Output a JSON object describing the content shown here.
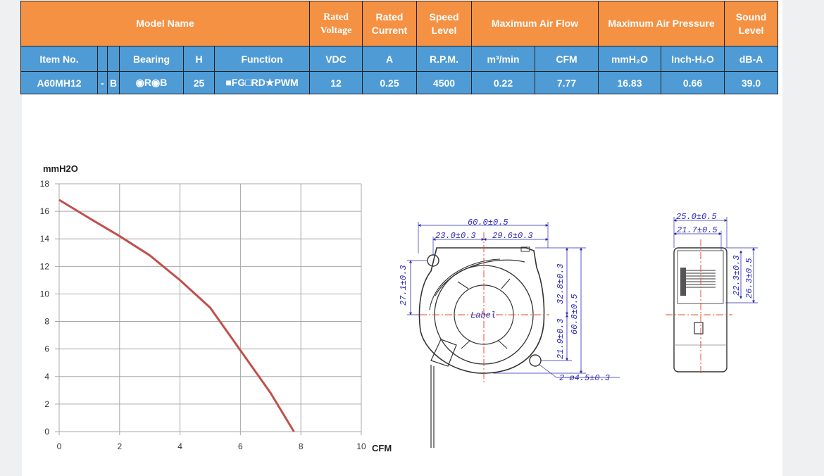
{
  "table": {
    "header1": {
      "model_name": "Model Name",
      "rated_voltage": "Rated Voltage",
      "rated_current": "Rated Current",
      "speed_level": "Speed Level",
      "max_air_flow": "Maximum Air Flow",
      "max_air_pressure": "Maximum Air Pressure",
      "sound_level": "Sound Level"
    },
    "header2": {
      "item_no": "Item No.",
      "bearing": "Bearing",
      "h": "H",
      "function": "Function",
      "vdc": "VDC",
      "a": "A",
      "rpm": "R.P.M.",
      "m3min": "m³/min",
      "cfm": "CFM",
      "mmh2o": "mmH₂O",
      "inchh2o": "Inch-H₂O",
      "dba": "dB-A"
    },
    "row": {
      "item_no": "A60MH12",
      "dash": "-",
      "b": "B",
      "bearing": "◉R◉B",
      "h": "25",
      "function": "■FG□RD★PWM",
      "vdc": "12",
      "a": "0.25",
      "rpm": "4500",
      "m3min": "0.22",
      "cfm": "7.77",
      "mmh2o": "16.83",
      "inchh2o": "0.66",
      "dba": "39.0"
    }
  },
  "chart_data": {
    "type": "line",
    "title": "",
    "xlabel": "CFM",
    "ylabel": "mmH2O",
    "xlim": [
      0,
      10
    ],
    "ylim": [
      0,
      18
    ],
    "x_ticks": [
      0,
      2,
      4,
      6,
      8,
      10
    ],
    "y_ticks": [
      0,
      2,
      4,
      6,
      8,
      10,
      12,
      14,
      16,
      18
    ],
    "grid": true,
    "series": [
      {
        "color": "#c0504d",
        "x": [
          0,
          1,
          2,
          3,
          4,
          5,
          6,
          7,
          7.77
        ],
        "y": [
          16.83,
          15.5,
          14.2,
          12.8,
          11.0,
          9.0,
          5.9,
          2.8,
          0
        ]
      }
    ]
  },
  "drawing": {
    "dim_overall_width": "60.0±0.5",
    "dim_left_offset": "23.0±0.3",
    "dim_right_offset": "29.6±0.3",
    "dim_left_height": "27.1±0.3",
    "dim_right_upper": "32.8±0.3",
    "dim_right_lower": "21.9±0.3",
    "dim_total_height": "60.8±0.5",
    "dim_holes": "2−ø4.5±0.3",
    "label_text": "Label",
    "dim_side_total": "25.0±0.5",
    "dim_side_inner": "21.7±0.5",
    "dim_side_h1": "22.3±0.3",
    "dim_side_h2": "26.3±0.5"
  },
  "colors": {
    "orange": "#f49143",
    "blue": "#4f9bd5",
    "curve": "#c0504d",
    "dimension": "#2a2ab8",
    "centerline": "#e0502a"
  }
}
